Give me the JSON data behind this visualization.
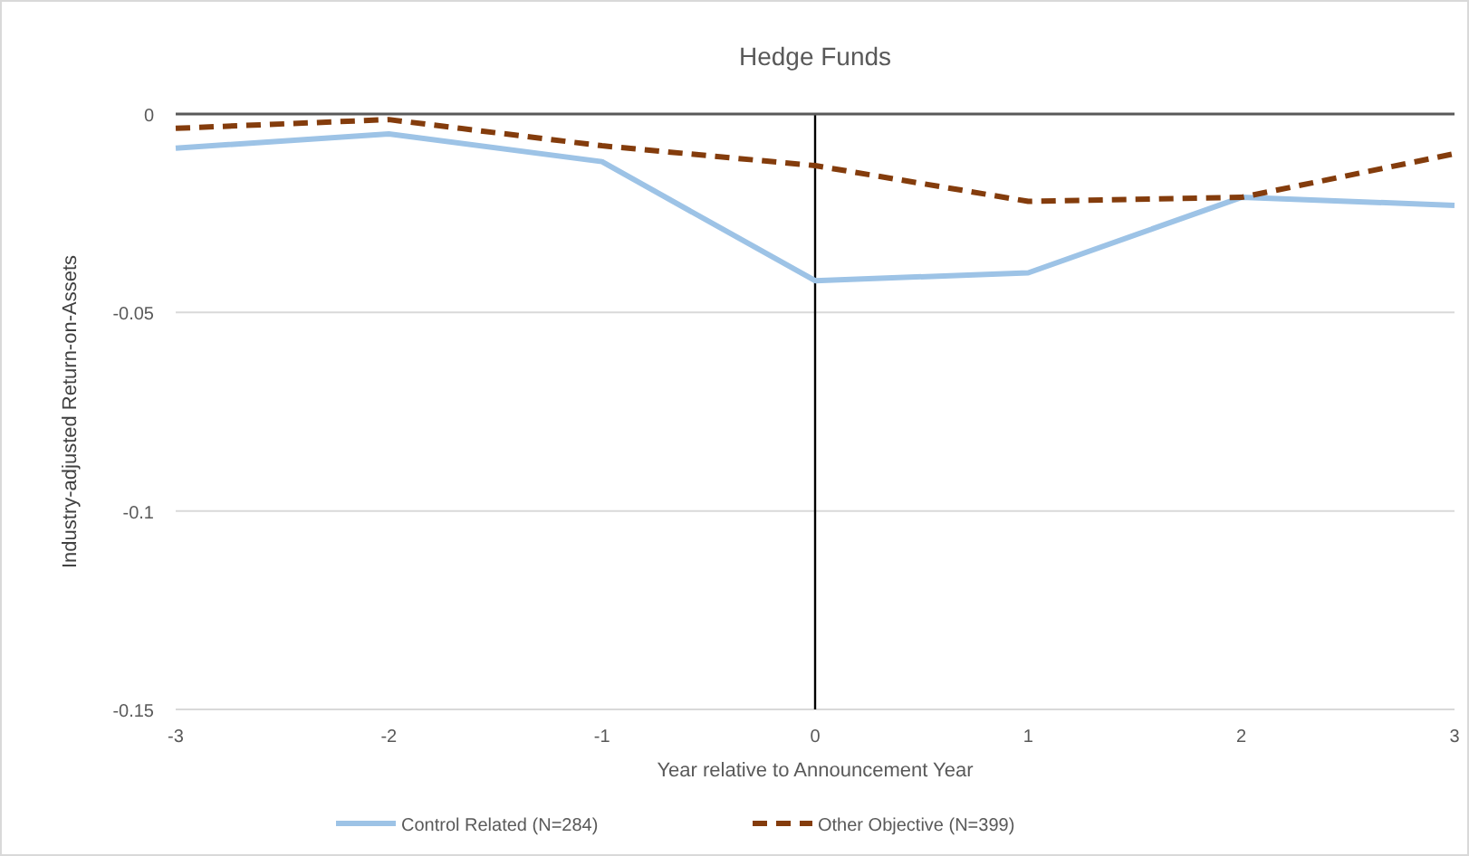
{
  "chart_data": {
    "type": "line",
    "title": "Hedge Funds",
    "xlabel": "Year relative to Announcement Year",
    "ylabel": "Industry-adjusted Return-on-Assets",
    "x": [
      -3,
      -2,
      -1,
      0,
      1,
      2,
      3
    ],
    "series": [
      {
        "name": "Control Related (N=284)",
        "color": "#9dc3e6",
        "values": [
          -0.0086,
          -0.005,
          -0.012,
          -0.042,
          -0.04,
          -0.021,
          -0.023
        ],
        "line_style": "solid"
      },
      {
        "name": "Other Objective (N=399)",
        "color": "#843c0c",
        "values": [
          -0.0036,
          -0.0014,
          -0.008,
          -0.013,
          -0.022,
          -0.021,
          -0.01
        ],
        "line_style": "dashed"
      }
    ],
    "xlim": [
      -3,
      3
    ],
    "xticks": [
      -3,
      -2,
      -1,
      0,
      1,
      2,
      3
    ],
    "ylim": [
      -0.15,
      0
    ],
    "yticks": [
      {
        "value": -0.15,
        "label": "-0.15"
      },
      {
        "value": -0.1,
        "label": "-0.1"
      },
      {
        "value": -0.05,
        "label": "-0.05"
      },
      0
    ],
    "grid": "y",
    "legend": "bottom",
    "ref_lines": [
      {
        "axis": "x",
        "value": 0,
        "color": "#000000"
      },
      {
        "axis": "y",
        "value": 0,
        "color": "#595959"
      }
    ]
  }
}
